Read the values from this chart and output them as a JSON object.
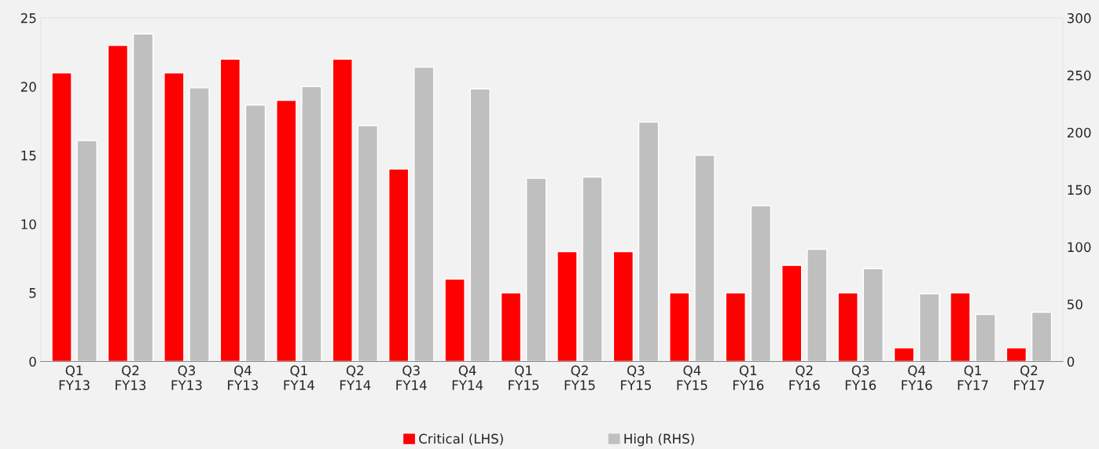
{
  "chart_data": {
    "type": "bar",
    "categories": [
      "Q1\nFY13",
      "Q2\nFY13",
      "Q3\nFY13",
      "Q4\nFY13",
      "Q1\nFY14",
      "Q2\nFY14",
      "Q3\nFY14",
      "Q4\nFY14",
      "Q1\nFY15",
      "Q2\nFY15",
      "Q3\nFY15",
      "Q4\nFY15",
      "Q1\nFY16",
      "Q2\nFY16",
      "Q3\nFY16",
      "Q4\nFY16",
      "Q1\nFY17",
      "Q2\nFY17"
    ],
    "series": [
      {
        "name": "Critical (LHS)",
        "color": "#ff0000",
        "values": [
          21,
          23,
          21,
          22,
          19,
          22,
          14,
          6,
          5,
          8,
          8,
          5,
          5,
          7,
          5,
          1,
          5,
          1
        ]
      },
      {
        "name": "High (RHS)",
        "color": "#bfbfbf",
        "axis": "y2",
        "values": [
          193,
          286,
          239,
          224,
          240,
          206,
          257,
          238,
          160,
          161,
          209,
          180,
          136,
          98,
          81,
          59,
          41,
          43
        ]
      }
    ],
    "ylim": [
      0,
      25
    ],
    "yticks": [
      0,
      5,
      10,
      15,
      20,
      25
    ],
    "y2lim": [
      0,
      300
    ],
    "y2ticks": [
      0,
      50,
      100,
      150,
      200,
      250,
      300
    ],
    "grid": false,
    "legend": "bottom"
  }
}
